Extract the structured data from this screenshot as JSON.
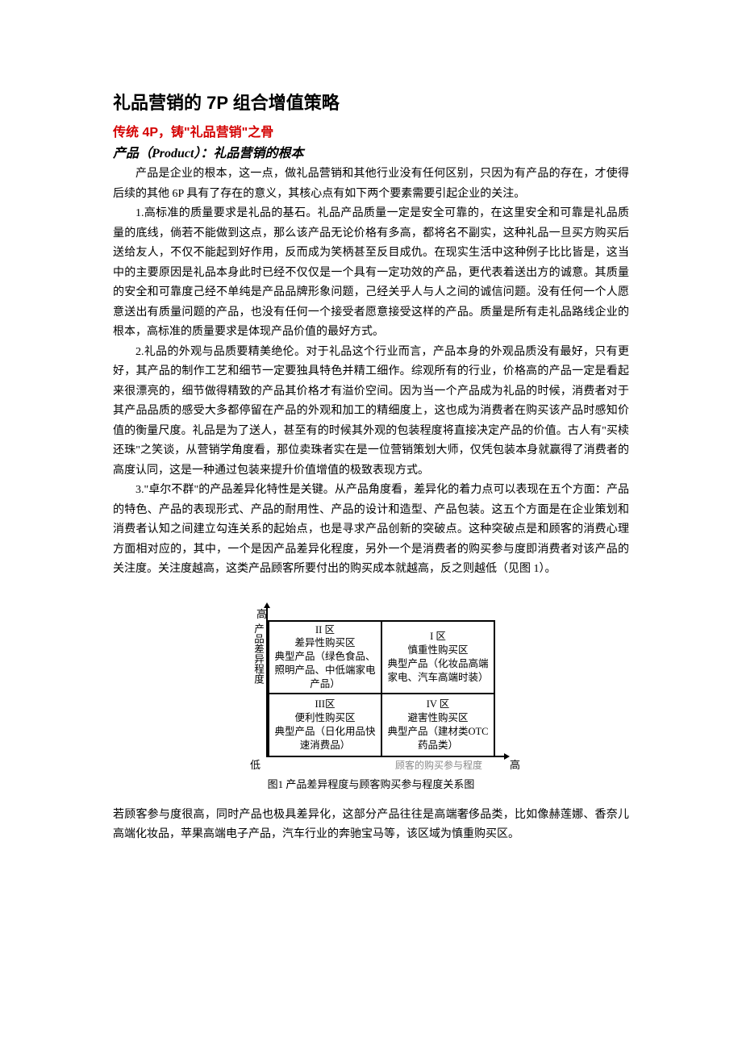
{
  "title": "礼品营销的 7P 组合增值策略",
  "section_red": "传统 4P，铸\"礼品营销\"之骨",
  "section_italic": "产品（Product）：礼品营销的根本",
  "para_intro": "产品是企业的根本，这一点，做礼品营销和其他行业没有任何区别，只因为有产品的存在，才使得后续的其他 6P 具有了存在的意义，其核心点有如下两个要素需要引起企业的关注。",
  "para1": "1.高标准的质量要求是礼品的基石。礼品产品质量一定是安全可靠的，在这里安全和可靠是礼品质量的底线，倘若不能做到这点，那么该产品无论价格有多高，都将名不副实，这种礼品一旦买方购买后送给友人，不仅不能起到好作用，反而成为笑柄甚至反目成仇。在现实生活中这种例子比比皆是，这当中的主要原因是礼品本身此时已经不仅仅是一个具有一定功效的产品，更代表着送出方的诚意。其质量的安全和可靠度己经不单纯是产品品牌形象问题，己经关乎人与人之间的诚信问题。没有任何一个人愿意送出有质量问题的产品，也没有任何一个接受者愿意接受这样的产品。质量是所有走礼品路线企业的根本，高标准的质量要求是体现产品价值的最好方式。",
  "para2": "2.礼品的外观与品质要精美绝伦。对于礼品这个行业而言，产品本身的外观品质没有最好，只有更好，其产品的制作工艺和细节一定要独具特色并精工细作。综观所有的行业，价格高的产品一定是看起来很漂亮的，细节做得精致的产品其价格才有溢价空间。因为当一个产品成为礼品的时候，消费者对于其产品品质的感受大多都停留在产品的外观和加工的精细度上，这也成为消费者在购买该产品时感知价值的衡量尺度。礼品是为了送人，甚至有的时候其外观的包装程度将直接决定产品的价值。古人有\"买椟还珠\"之笑谈，从营销学角度看，那位卖珠者实在是一位营销策划大师，仅凭包装本身就赢得了消费者的高度认同，这是一种通过包装来提升价值增值的极致表现方式。",
  "para3": "3.\"卓尔不群\"的产品差异化特性是关键。从产品角度看，差异化的着力点可以表现在五个方面：产品的特色、产品的表现形式、产品的耐用性、产品的设计和造型、产品包装。这五个方面是在企业策划和消费者认知之间建立勾连关系的起始点，也是寻求产品创新的突破点。这种突破点是和顾客的消费心理方面相对应的，其中，一个是因产品差异化程度，另外一个是消费者的购买参与度即消费者对该产品的关注度。关注度越高，这类产品顾客所要付出的购买成本就越高，反之则越低（见图 1）。",
  "figure": {
    "y_top": "高",
    "y_vert": "产品差异程度",
    "y_bottom": "低",
    "x_label": "顾客的购买参与程度",
    "x_right": "高",
    "caption": "图1 产品差异程度与顾客购买参与程度关系图",
    "cells": {
      "q2": {
        "zone": "II 区",
        "name": "差异性购买区",
        "prod": "典型产品（绿色食品、照明产品、中低端家电产品）"
      },
      "q1": {
        "zone": "I 区",
        "name": "慎重性购买区",
        "prod": "典型产品（化妆品高端家电、汽车高端时装）"
      },
      "q3": {
        "zone": "III区",
        "name": "便利性购买区",
        "prod": "典型产品（日化用品快速消费品）"
      },
      "q4": {
        "zone": "IV 区",
        "name": "避害性购买区",
        "prod": "典型产品（建材类OTC药品类）"
      }
    }
  },
  "para_after": "若顾客参与度很高，同时产品也极具差异化，这部分产品往往是高端奢侈品类，比如像赫莲娜、香奈儿高端化妆品，苹果高端电子产品，汽车行业的奔驰宝马等，该区域为慎重购买区。"
}
